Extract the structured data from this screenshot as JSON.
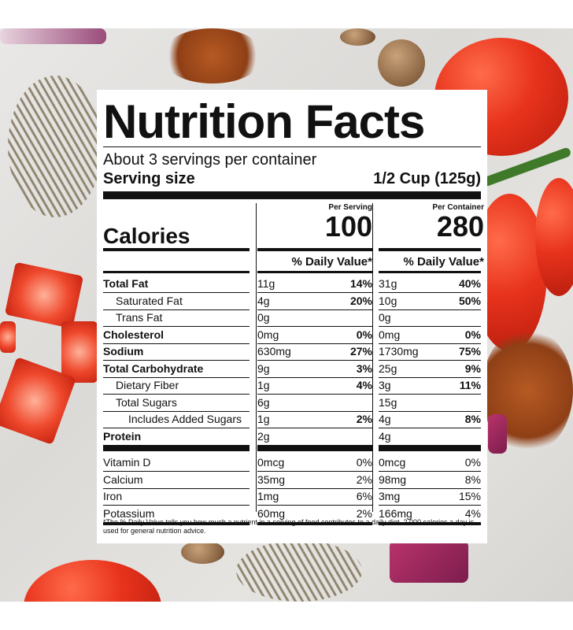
{
  "title": "Nutrition Facts",
  "servings_per_container": "About 3 servings per container",
  "serving_size_label": "Serving size",
  "serving_size_value": "1/2 Cup (125g)",
  "per_serving_label": "Per Serving",
  "per_container_label": "Per Container",
  "calories_label": "Calories",
  "calories_serving": "100",
  "calories_container": "280",
  "dv_header": "% Daily Value*",
  "nutrients": [
    {
      "name": "Total Fat",
      "s_amt": "11g",
      "s_dv": "14%",
      "c_amt": "31g",
      "c_dv": "40%"
    },
    {
      "name": "Saturated Fat",
      "s_amt": "4g",
      "s_dv": "20%",
      "c_amt": "10g",
      "c_dv": "50%"
    },
    {
      "name": "Trans Fat",
      "s_amt": "0g",
      "s_dv": "",
      "c_amt": "0g",
      "c_dv": ""
    },
    {
      "name": "Cholesterol",
      "s_amt": "0mg",
      "s_dv": "0%",
      "c_amt": "0mg",
      "c_dv": "0%"
    },
    {
      "name": "Sodium",
      "s_amt": "630mg",
      "s_dv": "27%",
      "c_amt": "1730mg",
      "c_dv": "75%"
    },
    {
      "name": "Total Carbohydrate",
      "s_amt": "9g",
      "s_dv": "3%",
      "c_amt": "25g",
      "c_dv": "9%"
    },
    {
      "name": "Dietary Fiber",
      "s_amt": "1g",
      "s_dv": "4%",
      "c_amt": "3g",
      "c_dv": "11%"
    },
    {
      "name": "Total Sugars",
      "s_amt": "6g",
      "s_dv": "",
      "c_amt": "15g",
      "c_dv": ""
    },
    {
      "name": "Includes Added Sugars",
      "s_amt": "1g",
      "s_dv": "2%",
      "c_amt": "4g",
      "c_dv": "8%"
    },
    {
      "name": "Protein",
      "s_amt": "2g",
      "s_dv": "",
      "c_amt": "4g",
      "c_dv": ""
    }
  ],
  "vitamins": [
    {
      "name": "Vitamin D",
      "s_amt": "0mcg",
      "s_dv": "0%",
      "c_amt": "0mcg",
      "c_dv": "0%"
    },
    {
      "name": "Calcium",
      "s_amt": "35mg",
      "s_dv": "2%",
      "c_amt": "98mg",
      "c_dv": "8%"
    },
    {
      "name": "Iron",
      "s_amt": "1mg",
      "s_dv": "6%",
      "c_amt": "3mg",
      "c_dv": "15%"
    },
    {
      "name": "Potassium",
      "s_amt": "60mg",
      "s_dv": "2%",
      "c_amt": "166mg",
      "c_dv": "4%"
    }
  ],
  "footnote": "*The % Daily Value tells you how much a nutrient in a serving of food contributes to a daily diet. 2,000 calories a day is used for general nutrition advice."
}
